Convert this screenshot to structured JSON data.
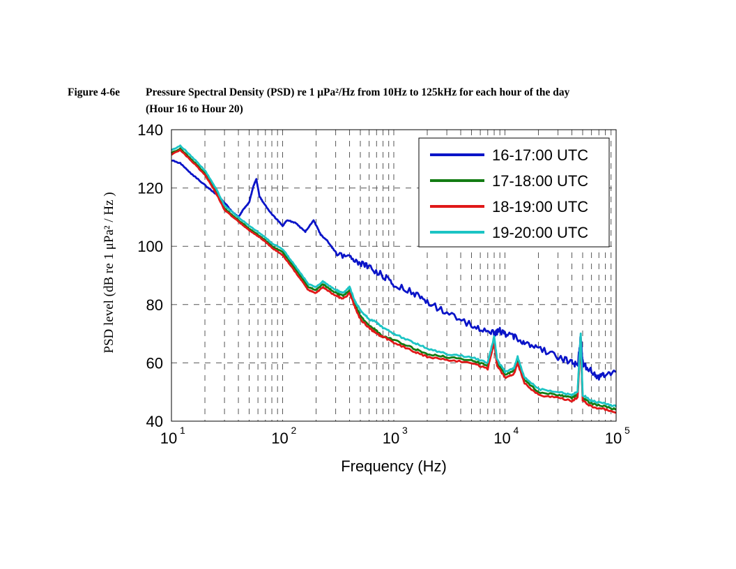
{
  "caption": {
    "label": "Figure 4-6e",
    "title_line1": "Pressure Spectral Density (PSD) re 1 μPa²/Hz from 10Hz to 125kHz for each hour of the day",
    "title_line2": "(Hour 16 to Hour 20)"
  },
  "chart_data": {
    "type": "line",
    "xlabel": "Frequency (Hz)",
    "ylabel": "PSD level (dB re 1 μPa² / Hz )",
    "xscale": "log",
    "xlim": [
      10,
      100000
    ],
    "ylim": [
      40,
      140
    ],
    "x_ticks": [
      {
        "base": "10",
        "exp": "1",
        "value": 10
      },
      {
        "base": "10",
        "exp": "2",
        "value": 100
      },
      {
        "base": "10",
        "exp": "3",
        "value": 1000
      },
      {
        "base": "10",
        "exp": "4",
        "value": 10000
      },
      {
        "base": "10",
        "exp": "5",
        "value": 100000
      }
    ],
    "y_ticks": [
      "40",
      "60",
      "80",
      "100",
      "120",
      "140"
    ],
    "grid": true,
    "legend_position": "top-right",
    "series": [
      {
        "name": "16-17:00 UTC",
        "color": "#0a14c8",
        "points": [
          [
            10,
            129.5
          ],
          [
            12,
            128.5
          ],
          [
            15,
            125
          ],
          [
            20,
            121
          ],
          [
            25,
            118
          ],
          [
            30,
            115
          ],
          [
            35,
            112
          ],
          [
            40,
            110
          ],
          [
            45,
            113
          ],
          [
            50,
            115
          ],
          [
            55,
            121
          ],
          [
            58,
            123
          ],
          [
            62,
            117
          ],
          [
            70,
            114
          ],
          [
            80,
            111
          ],
          [
            90,
            109
          ],
          [
            100,
            107
          ],
          [
            110,
            109
          ],
          [
            130,
            108
          ],
          [
            160,
            105
          ],
          [
            190,
            109
          ],
          [
            220,
            104
          ],
          [
            250,
            102
          ],
          [
            300,
            98
          ],
          [
            400,
            96
          ],
          [
            500,
            94
          ],
          [
            600,
            93
          ],
          [
            800,
            90
          ],
          [
            1000,
            87
          ],
          [
            1500,
            84
          ],
          [
            2000,
            81
          ],
          [
            3000,
            77
          ],
          [
            5000,
            73
          ],
          [
            7000,
            71
          ],
          [
            8000,
            70
          ],
          [
            9000,
            71
          ],
          [
            10000,
            70
          ],
          [
            12000,
            69
          ],
          [
            15000,
            67
          ],
          [
            20000,
            65
          ],
          [
            30000,
            62
          ],
          [
            40000,
            60
          ],
          [
            45000,
            59
          ],
          [
            48000,
            69
          ],
          [
            50000,
            60
          ],
          [
            60000,
            57
          ],
          [
            70000,
            55
          ],
          [
            80000,
            56
          ],
          [
            100000,
            57
          ]
        ]
      },
      {
        "name": "17-18:00 UTC",
        "color": "#137c13",
        "points": [
          [
            10,
            132
          ],
          [
            12,
            133.5
          ],
          [
            15,
            130
          ],
          [
            20,
            125
          ],
          [
            25,
            119
          ],
          [
            30,
            113
          ],
          [
            40,
            109
          ],
          [
            50,
            106
          ],
          [
            60,
            104
          ],
          [
            70,
            102
          ],
          [
            80,
            100
          ],
          [
            100,
            98
          ],
          [
            120,
            94
          ],
          [
            150,
            89
          ],
          [
            170,
            86
          ],
          [
            200,
            85
          ],
          [
            230,
            87
          ],
          [
            250,
            86
          ],
          [
            300,
            84
          ],
          [
            350,
            83
          ],
          [
            400,
            85
          ],
          [
            450,
            80
          ],
          [
            500,
            76
          ],
          [
            600,
            73
          ],
          [
            700,
            71
          ],
          [
            800,
            69
          ],
          [
            1000,
            68
          ],
          [
            1500,
            65
          ],
          [
            2000,
            63
          ],
          [
            3000,
            62
          ],
          [
            5000,
            61
          ],
          [
            7000,
            59
          ],
          [
            8000,
            68
          ],
          [
            8500,
            60
          ],
          [
            10000,
            56
          ],
          [
            12000,
            57
          ],
          [
            13000,
            61
          ],
          [
            15000,
            54
          ],
          [
            20000,
            50
          ],
          [
            30000,
            49
          ],
          [
            40000,
            48
          ],
          [
            45000,
            49
          ],
          [
            48000,
            69
          ],
          [
            50000,
            48
          ],
          [
            60000,
            46
          ],
          [
            80000,
            45
          ],
          [
            100000,
            44
          ]
        ]
      },
      {
        "name": "18-19:00 UTC",
        "color": "#e01818",
        "points": [
          [
            10,
            131.5
          ],
          [
            12,
            133
          ],
          [
            15,
            129.5
          ],
          [
            20,
            124.5
          ],
          [
            25,
            118.5
          ],
          [
            30,
            112.5
          ],
          [
            40,
            108.5
          ],
          [
            50,
            105.5
          ],
          [
            60,
            103.5
          ],
          [
            70,
            101.5
          ],
          [
            80,
            99.5
          ],
          [
            100,
            97
          ],
          [
            120,
            93
          ],
          [
            150,
            88
          ],
          [
            170,
            85
          ],
          [
            200,
            84
          ],
          [
            230,
            86
          ],
          [
            250,
            85
          ],
          [
            300,
            83
          ],
          [
            350,
            82
          ],
          [
            400,
            84
          ],
          [
            450,
            79
          ],
          [
            500,
            75
          ],
          [
            600,
            72
          ],
          [
            700,
            70
          ],
          [
            800,
            69
          ],
          [
            1000,
            67
          ],
          [
            1500,
            64
          ],
          [
            2000,
            62
          ],
          [
            3000,
            61
          ],
          [
            5000,
            60
          ],
          [
            7000,
            58
          ],
          [
            8000,
            67
          ],
          [
            8500,
            59
          ],
          [
            10000,
            55
          ],
          [
            12000,
            56
          ],
          [
            13000,
            60
          ],
          [
            15000,
            53
          ],
          [
            20000,
            49
          ],
          [
            30000,
            48
          ],
          [
            40000,
            47
          ],
          [
            45000,
            48
          ],
          [
            48000,
            68
          ],
          [
            50000,
            47
          ],
          [
            60000,
            45
          ],
          [
            80000,
            44
          ],
          [
            100000,
            43
          ]
        ]
      },
      {
        "name": "19-20:00 UTC",
        "color": "#1cc4c4",
        "points": [
          [
            10,
            133
          ],
          [
            12,
            134.5
          ],
          [
            15,
            131
          ],
          [
            20,
            126
          ],
          [
            25,
            120
          ],
          [
            30,
            114
          ],
          [
            40,
            110
          ],
          [
            50,
            107
          ],
          [
            60,
            105
          ],
          [
            70,
            103
          ],
          [
            80,
            101
          ],
          [
            100,
            99
          ],
          [
            120,
            95
          ],
          [
            150,
            90
          ],
          [
            170,
            87
          ],
          [
            200,
            86
          ],
          [
            230,
            88
          ],
          [
            250,
            87
          ],
          [
            300,
            85
          ],
          [
            350,
            84
          ],
          [
            400,
            86
          ],
          [
            450,
            81
          ],
          [
            500,
            78
          ],
          [
            600,
            75
          ],
          [
            700,
            74
          ],
          [
            800,
            72
          ],
          [
            1000,
            70
          ],
          [
            1500,
            67
          ],
          [
            2000,
            65
          ],
          [
            3000,
            63
          ],
          [
            5000,
            62
          ],
          [
            7000,
            60
          ],
          [
            8000,
            69
          ],
          [
            8500,
            61
          ],
          [
            10000,
            57
          ],
          [
            12000,
            58
          ],
          [
            13000,
            62
          ],
          [
            15000,
            55
          ],
          [
            20000,
            51
          ],
          [
            30000,
            50
          ],
          [
            40000,
            49
          ],
          [
            45000,
            50
          ],
          [
            48000,
            70
          ],
          [
            50000,
            49
          ],
          [
            60000,
            47
          ],
          [
            80000,
            46
          ],
          [
            100000,
            45
          ]
        ]
      }
    ]
  }
}
